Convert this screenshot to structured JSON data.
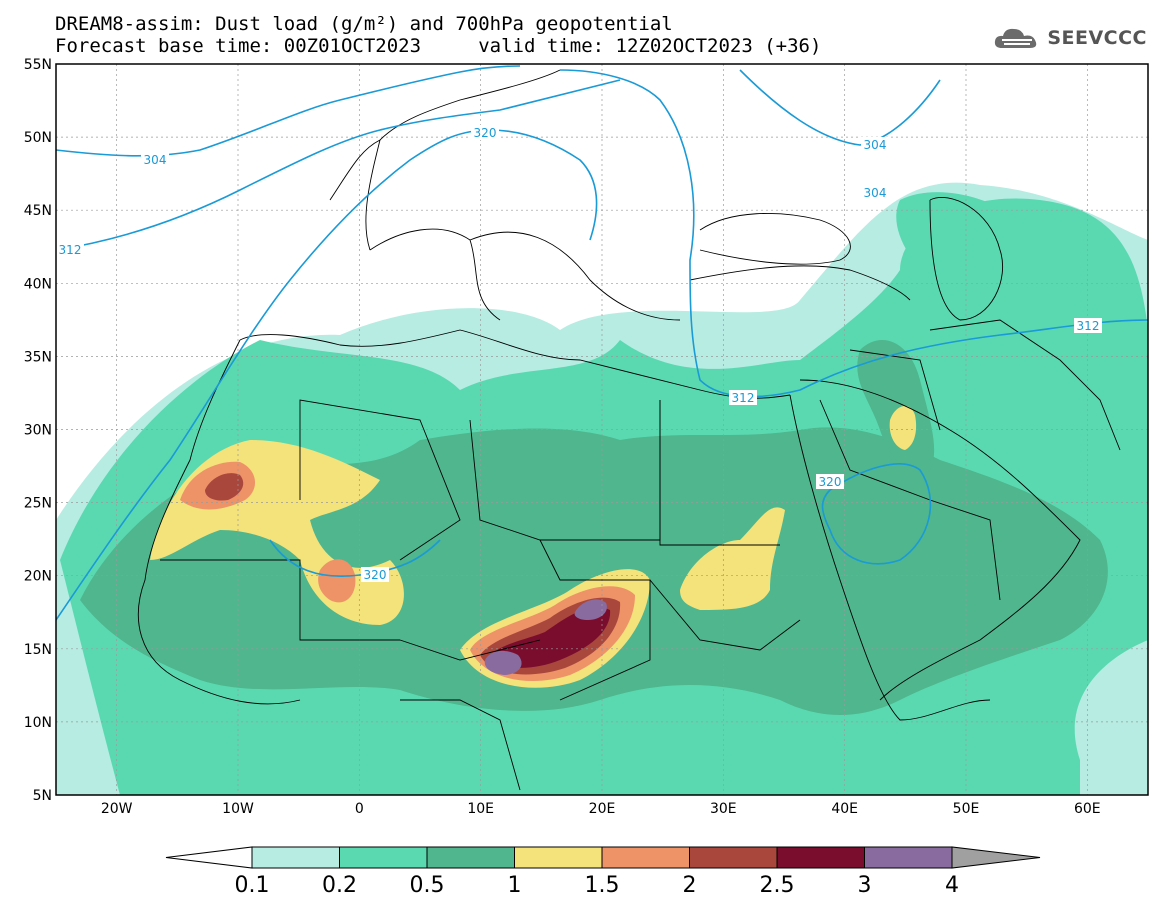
{
  "title": {
    "line1": "DREAM8-assim: Dust load (g/m²) and 700hPa geopotential",
    "line2": "Forecast base time: 00Z01OCT2023     valid time: 12Z02OCT2023 (+36)"
  },
  "logo": {
    "text": "SEEVCCC",
    "icon": "cloud-icon"
  },
  "map": {
    "lat_labels": [
      "55N",
      "50N",
      "45N",
      "40N",
      "35N",
      "30N",
      "25N",
      "20N",
      "15N",
      "10N",
      "5N"
    ],
    "lon_labels": [
      "20W",
      "10W",
      "0",
      "10E",
      "20E",
      "30E",
      "40E",
      "50E",
      "60E"
    ],
    "lat_range": [
      5,
      55
    ],
    "lon_range": [
      -25,
      65
    ]
  },
  "contour_labels": [
    "304",
    "320",
    "304",
    "304",
    "312",
    "312",
    "312",
    "320",
    "320"
  ],
  "colorbar": {
    "labels": [
      "0.1",
      "0.2",
      "0.5",
      "1",
      "1.5",
      "2",
      "2.5",
      "3",
      "4"
    ],
    "colors": [
      "#b7ece3",
      "#5ad9b1",
      "#4fb68e",
      "#f4e27a",
      "#ee9268",
      "#a9473d",
      "#7a0d2e",
      "#8a6ba0"
    ],
    "under_color": "#ffffff",
    "over_color": "#a0a0a0"
  },
  "colors": {
    "contour": "#1a9ad6",
    "border": "#000000",
    "grid": "#9a9a9a"
  }
}
